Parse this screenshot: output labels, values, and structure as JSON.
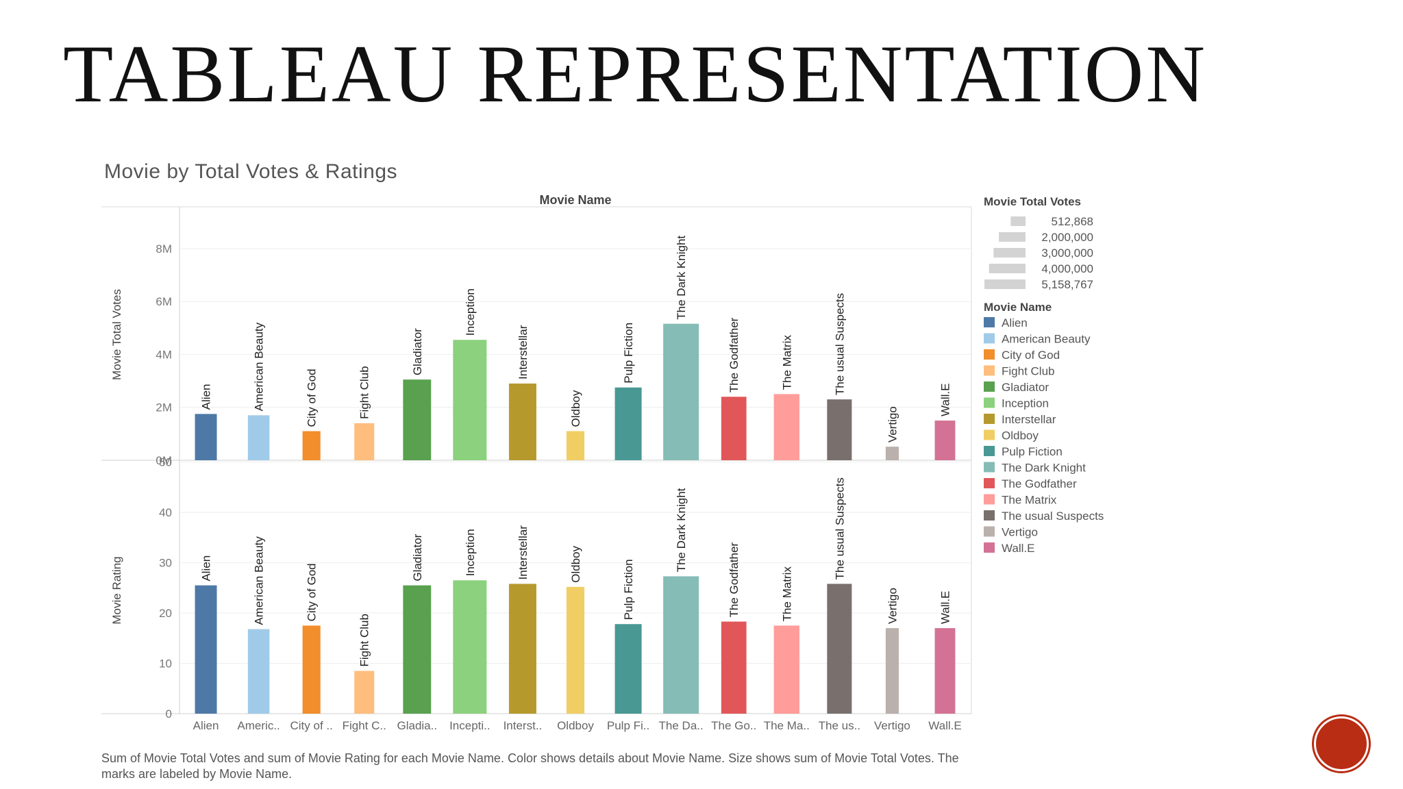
{
  "slide": {
    "title": "TABLEAU REPRESENTATION",
    "chart_title": "Movie by Total Votes & Ratings",
    "caption": "Sum of Movie Total Votes and sum of Movie Rating for each Movie Name.  Color shows details about Movie Name.  Size shows sum of Movie Total Votes.  The marks are labeled by Movie Name.",
    "nav_button_color": "#b92d14"
  },
  "chart_data": {
    "type": "bar",
    "column_header": "Movie Name",
    "categories": [
      "Alien",
      "American Beauty",
      "City of God",
      "Fight Club",
      "Gladiator",
      "Inception",
      "Interstellar",
      "Oldboy",
      "Pulp Fiction",
      "The Dark Knight",
      "The Godfather",
      "The Matrix",
      "The usual Suspects",
      "Vertigo",
      "Wall.E"
    ],
    "x_tick_labels": [
      "Alien",
      "Americ..",
      "City of ..",
      "Fight C..",
      "Gladia..",
      "Incepti..",
      "Interst..",
      "Oldboy",
      "Pulp Fi..",
      "The Da..",
      "The Go..",
      "The Ma..",
      "The us..",
      "Vertigo",
      "Wall.E"
    ],
    "colors": [
      "#4e79a7",
      "#a0cbe8",
      "#f28e2b",
      "#ffbe7d",
      "#59a14f",
      "#8cd17d",
      "#b6992d",
      "#f1ce63",
      "#499894",
      "#86bcb6",
      "#e15759",
      "#ff9d9a",
      "#79706e",
      "#bab0ac",
      "#d37295"
    ],
    "series": [
      {
        "name": "Movie Total Votes",
        "values": [
          1750000,
          1700000,
          1100000,
          1400000,
          3050000,
          4550000,
          2900000,
          1100000,
          2750000,
          5158767,
          2400000,
          2500000,
          2300000,
          512868,
          1500000
        ],
        "yticks": [
          "0M",
          "2M",
          "4M",
          "6M",
          "8M"
        ],
        "ylim": [
          0,
          9500000
        ]
      },
      {
        "name": "Movie Rating",
        "values": [
          25.5,
          16.8,
          17.5,
          8.5,
          25.5,
          26.5,
          25.8,
          25.2,
          17.8,
          27.3,
          18.3,
          17.5,
          25.8,
          17.0,
          17.0
        ],
        "yticks": [
          "0",
          "10",
          "20",
          "30",
          "40",
          "50"
        ],
        "ylim": [
          0,
          49
        ]
      }
    ],
    "legend_size": {
      "title": "Movie Total Votes",
      "entries": [
        "512,868",
        "2,000,000",
        "3,000,000",
        "4,000,000",
        "5,158,767"
      ],
      "values": [
        512868,
        2000000,
        3000000,
        4000000,
        5158767
      ]
    },
    "legend_color_title": "Movie Name",
    "grid": true,
    "legend_position": "right"
  }
}
